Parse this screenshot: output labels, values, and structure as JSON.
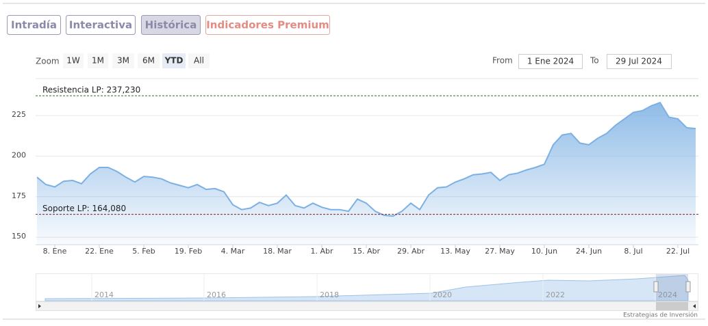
{
  "tabs": [
    "Intradía",
    "Interactiva",
    "Histórica",
    "Indicadores Premium"
  ],
  "range_selector": {
    "label": "Zoom",
    "buttons": [
      "1W",
      "1M",
      "3M",
      "6M",
      "YTD",
      "All"
    ],
    "from_label": "From",
    "from": "1 Ene 2024",
    "to_label": "To",
    "to": "29 Jul 2024"
  },
  "navigator": {
    "labels": [
      "2014",
      "2016",
      "2018",
      "2020",
      "2022",
      "2024"
    ]
  },
  "credit": "Estrategias de Inversión",
  "chart_data": {
    "type": "area",
    "categories": [
      null,
      null,
      "8. Ene",
      null,
      null,
      null,
      null,
      "22. Ene",
      null,
      null,
      null,
      null,
      "5. Feb",
      null,
      null,
      null,
      null,
      "19. Feb",
      null,
      null,
      null,
      null,
      "4. Mar",
      null,
      null,
      null,
      null,
      "18. Mar",
      null,
      null,
      null,
      null,
      "1. Abr",
      null,
      null,
      null,
      null,
      "15. Abr",
      null,
      null,
      null,
      null,
      "29. Abr",
      null,
      null,
      null,
      null,
      "13. May",
      null,
      null,
      null,
      null,
      "27. May",
      null,
      null,
      null,
      null,
      "10. Jun",
      null,
      null,
      null,
      null,
      "24. Jun",
      null,
      null,
      null,
      null,
      "8. Jul",
      null,
      null,
      null,
      null,
      "22. Jul",
      null,
      null
    ],
    "series": [
      {
        "color": "#7cb0e3",
        "values": [
          187,
          182.5,
          181,
          184.5,
          185,
          183,
          189,
          193,
          193,
          190.5,
          187,
          184,
          187.5,
          187,
          186,
          183.5,
          182,
          180.5,
          182.5,
          179.5,
          180,
          178,
          170,
          167,
          168,
          171.5,
          169.5,
          171,
          176,
          169.5,
          168,
          171,
          168.5,
          167,
          167,
          166,
          173.5,
          171,
          166,
          163.5,
          163,
          166,
          171,
          167,
          176,
          180.5,
          181,
          184,
          186,
          188.5,
          189,
          190,
          185,
          188.5,
          189.5,
          191.5,
          193,
          195,
          207,
          213,
          214,
          208,
          207,
          211,
          214,
          219,
          223,
          227,
          228,
          231,
          233,
          224,
          223,
          217.5,
          217
        ]
      }
    ],
    "ylim": [
      145.4,
      247.8
    ],
    "yticks": [
      150,
      175,
      200,
      225
    ],
    "grid": true,
    "annotations": [
      {
        "value": 237.23,
        "label": "Resistencia LP: 237,230",
        "color": "#2e6b2e"
      },
      {
        "value": 164.08,
        "label": "Soporte LP: 164,080",
        "color": "#7a1f2b"
      }
    ]
  }
}
